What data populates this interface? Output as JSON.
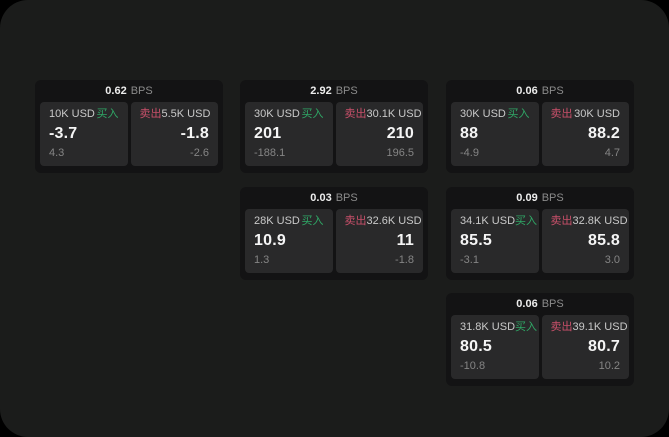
{
  "labels": {
    "buy": "买入",
    "sell": "卖出",
    "bps_unit": "BPS"
  },
  "colors": {
    "body_bg": "#000000",
    "app_panel_bg": "#1b1c1b",
    "card_bg": "#131314",
    "quote_panel_bg": "#29292a",
    "buy_green": "#2fa866",
    "sell_red": "#c9506a",
    "price_white": "#f5f5f5",
    "amount_gray": "#c9c9c9",
    "sub_gray": "#858585",
    "bps_unit_gray": "#8b8b8b"
  },
  "cards": [
    {
      "bps": "0.62",
      "buy": {
        "amount": "10K USD",
        "value": "-3.7",
        "sub": "4.3"
      },
      "sell": {
        "amount": "5.5K USD",
        "value": "-1.8",
        "sub": "-2.6"
      }
    },
    {
      "bps": "2.92",
      "buy": {
        "amount": "30K USD",
        "value": "201",
        "sub": "-188.1"
      },
      "sell": {
        "amount": "30.1K USD",
        "value": "210",
        "sub": "196.5"
      }
    },
    {
      "bps": "0.06",
      "buy": {
        "amount": "30K USD",
        "value": "88",
        "sub": "-4.9"
      },
      "sell": {
        "amount": "30K USD",
        "value": "88.2",
        "sub": "4.7"
      }
    },
    {
      "bps": "0.03",
      "buy": {
        "amount": "28K USD",
        "value": "10.9",
        "sub": "1.3"
      },
      "sell": {
        "amount": "32.6K USD",
        "value": "11",
        "sub": "-1.8"
      }
    },
    {
      "bps": "0.09",
      "buy": {
        "amount": "34.1K USD",
        "value": "85.5",
        "sub": "-3.1"
      },
      "sell": {
        "amount": "32.8K USD",
        "value": "85.8",
        "sub": "3.0"
      }
    },
    {
      "bps": "0.06",
      "buy": {
        "amount": "31.8K USD",
        "value": "80.5",
        "sub": "-10.8"
      },
      "sell": {
        "amount": "39.1K USD",
        "value": "80.7",
        "sub": "10.2"
      }
    }
  ]
}
